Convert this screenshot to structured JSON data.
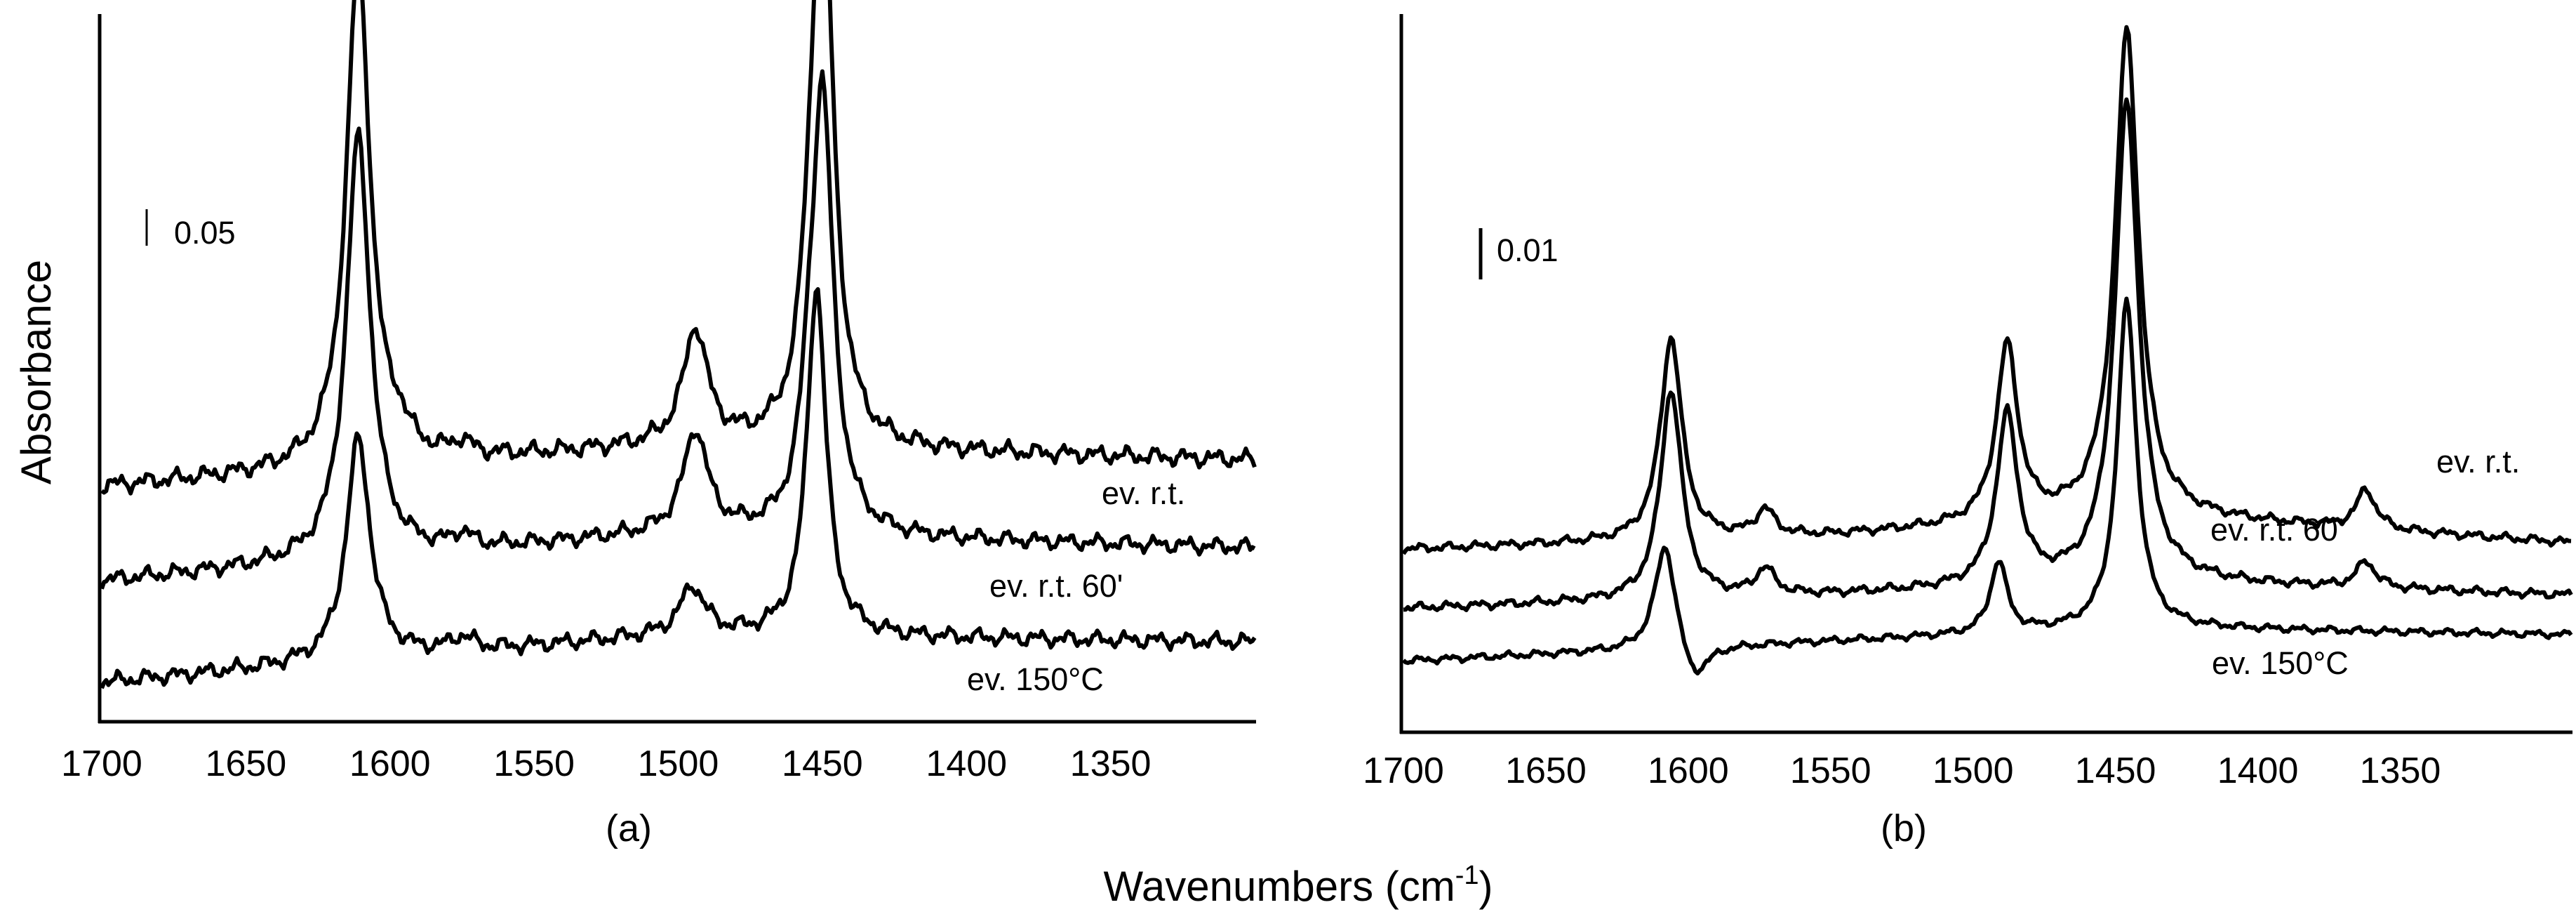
{
  "figure": {
    "ylabel": "Absorbance",
    "xlabel_main": "Wavenumbers (cm",
    "xlabel_sup": "-1",
    "xlabel_close": ")"
  },
  "chart_data": [
    {
      "type": "line",
      "panel_label": "(a)",
      "xlabel": "Wavenumbers (cm-1)",
      "ylabel": "Absorbance",
      "xlim": [
        1700,
        1300
      ],
      "x_reversed": true,
      "ylim": [
        0,
        1.0
      ],
      "ticks": [
        "1700",
        "1650",
        "1600",
        "1550",
        "1500",
        "1450",
        "1400",
        "1350"
      ],
      "scale_bar": {
        "label": "0.05",
        "value": 0.05
      },
      "series": [
        {
          "name": "ev. r.t.",
          "baseline": [
            [
              1700,
              0.34
            ],
            [
              1500,
              0.4
            ],
            [
              1300,
              0.38
            ]
          ],
          "peaks": [
            [
              1611,
              0.75,
              5
            ],
            [
              1597,
              0.03,
              4
            ],
            [
              1575,
              0.02,
              4
            ],
            [
              1494,
              0.17,
              5
            ],
            [
              1455,
              0.07,
              3
            ],
            [
              1450,
              0.88,
              4.5
            ]
          ],
          "noise": 0.012
        },
        {
          "name": "ev. r.t.  60'",
          "baseline": [
            [
              1700,
              0.2
            ],
            [
              1500,
              0.27
            ],
            [
              1300,
              0.25
            ]
          ],
          "peaks": [
            [
              1611,
              0.63,
              5
            ],
            [
              1575,
              0.02,
              4
            ],
            [
              1494,
              0.15,
              5
            ],
            [
              1455,
              0.08,
              3
            ],
            [
              1450,
              0.66,
              4.5
            ]
          ],
          "noise": 0.011
        },
        {
          "name": "ev. 150°C",
          "baseline": [
            [
              1700,
              0.05
            ],
            [
              1500,
              0.12
            ],
            [
              1300,
              0.11
            ]
          ],
          "peaks": [
            [
              1611,
              0.33,
              5
            ],
            [
              1575,
              0.02,
              5
            ],
            [
              1495,
              0.07,
              5
            ],
            [
              1452,
              0.52,
              4
            ]
          ],
          "noise": 0.011
        }
      ]
    },
    {
      "type": "line",
      "panel_label": "(b)",
      "xlabel": "Wavenumbers (cm-1)",
      "ylabel": "Absorbance",
      "xlim": [
        1700,
        1290
      ],
      "x_reversed": true,
      "ylim": [
        0,
        1.0
      ],
      "ticks": [
        "1700",
        "1650",
        "1600",
        "1550",
        "1500",
        "1450",
        "1400",
        "1350"
      ],
      "scale_bar": {
        "label": "0.01",
        "value": 0.01
      },
      "series": [
        {
          "name": "ev. r.t.",
          "baseline": [
            [
              1700,
              0.27
            ],
            [
              1550,
              0.29
            ],
            [
              1440,
              0.32
            ],
            [
              1290,
              0.28
            ]
          ],
          "peaks": [
            [
              1606,
              0.31,
              4.5
            ],
            [
              1573,
              0.04,
              4
            ],
            [
              1488,
              0.27,
              4.5
            ],
            [
              1446,
              0.74,
              5
            ],
            [
              1362,
              0.06,
              4
            ]
          ],
          "noise": 0.006
        },
        {
          "name": "ev. r.t. 60'",
          "baseline": [
            [
              1700,
              0.18
            ],
            [
              1550,
              0.2
            ],
            [
              1440,
              0.22
            ],
            [
              1290,
              0.2
            ]
          ],
          "peaks": [
            [
              1606,
              0.32,
              4.5
            ],
            [
              1573,
              0.04,
              4
            ],
            [
              1488,
              0.26,
              4.5
            ],
            [
              1446,
              0.73,
              5
            ],
            [
              1362,
              0.04,
              4
            ]
          ],
          "noise": 0.006
        },
        {
          "name": "ev. 150°C",
          "baseline": [
            [
              1700,
              0.1
            ],
            [
              1550,
              0.13
            ],
            [
              1440,
              0.15
            ],
            [
              1290,
              0.14
            ]
          ],
          "peaks": [
            [
              1608,
              0.17,
              4.5
            ],
            [
              1598,
              -0.06,
              6
            ],
            [
              1491,
              0.11,
              3.5
            ],
            [
              1446,
              0.5,
              4
            ]
          ],
          "noise": 0.005
        }
      ]
    }
  ]
}
